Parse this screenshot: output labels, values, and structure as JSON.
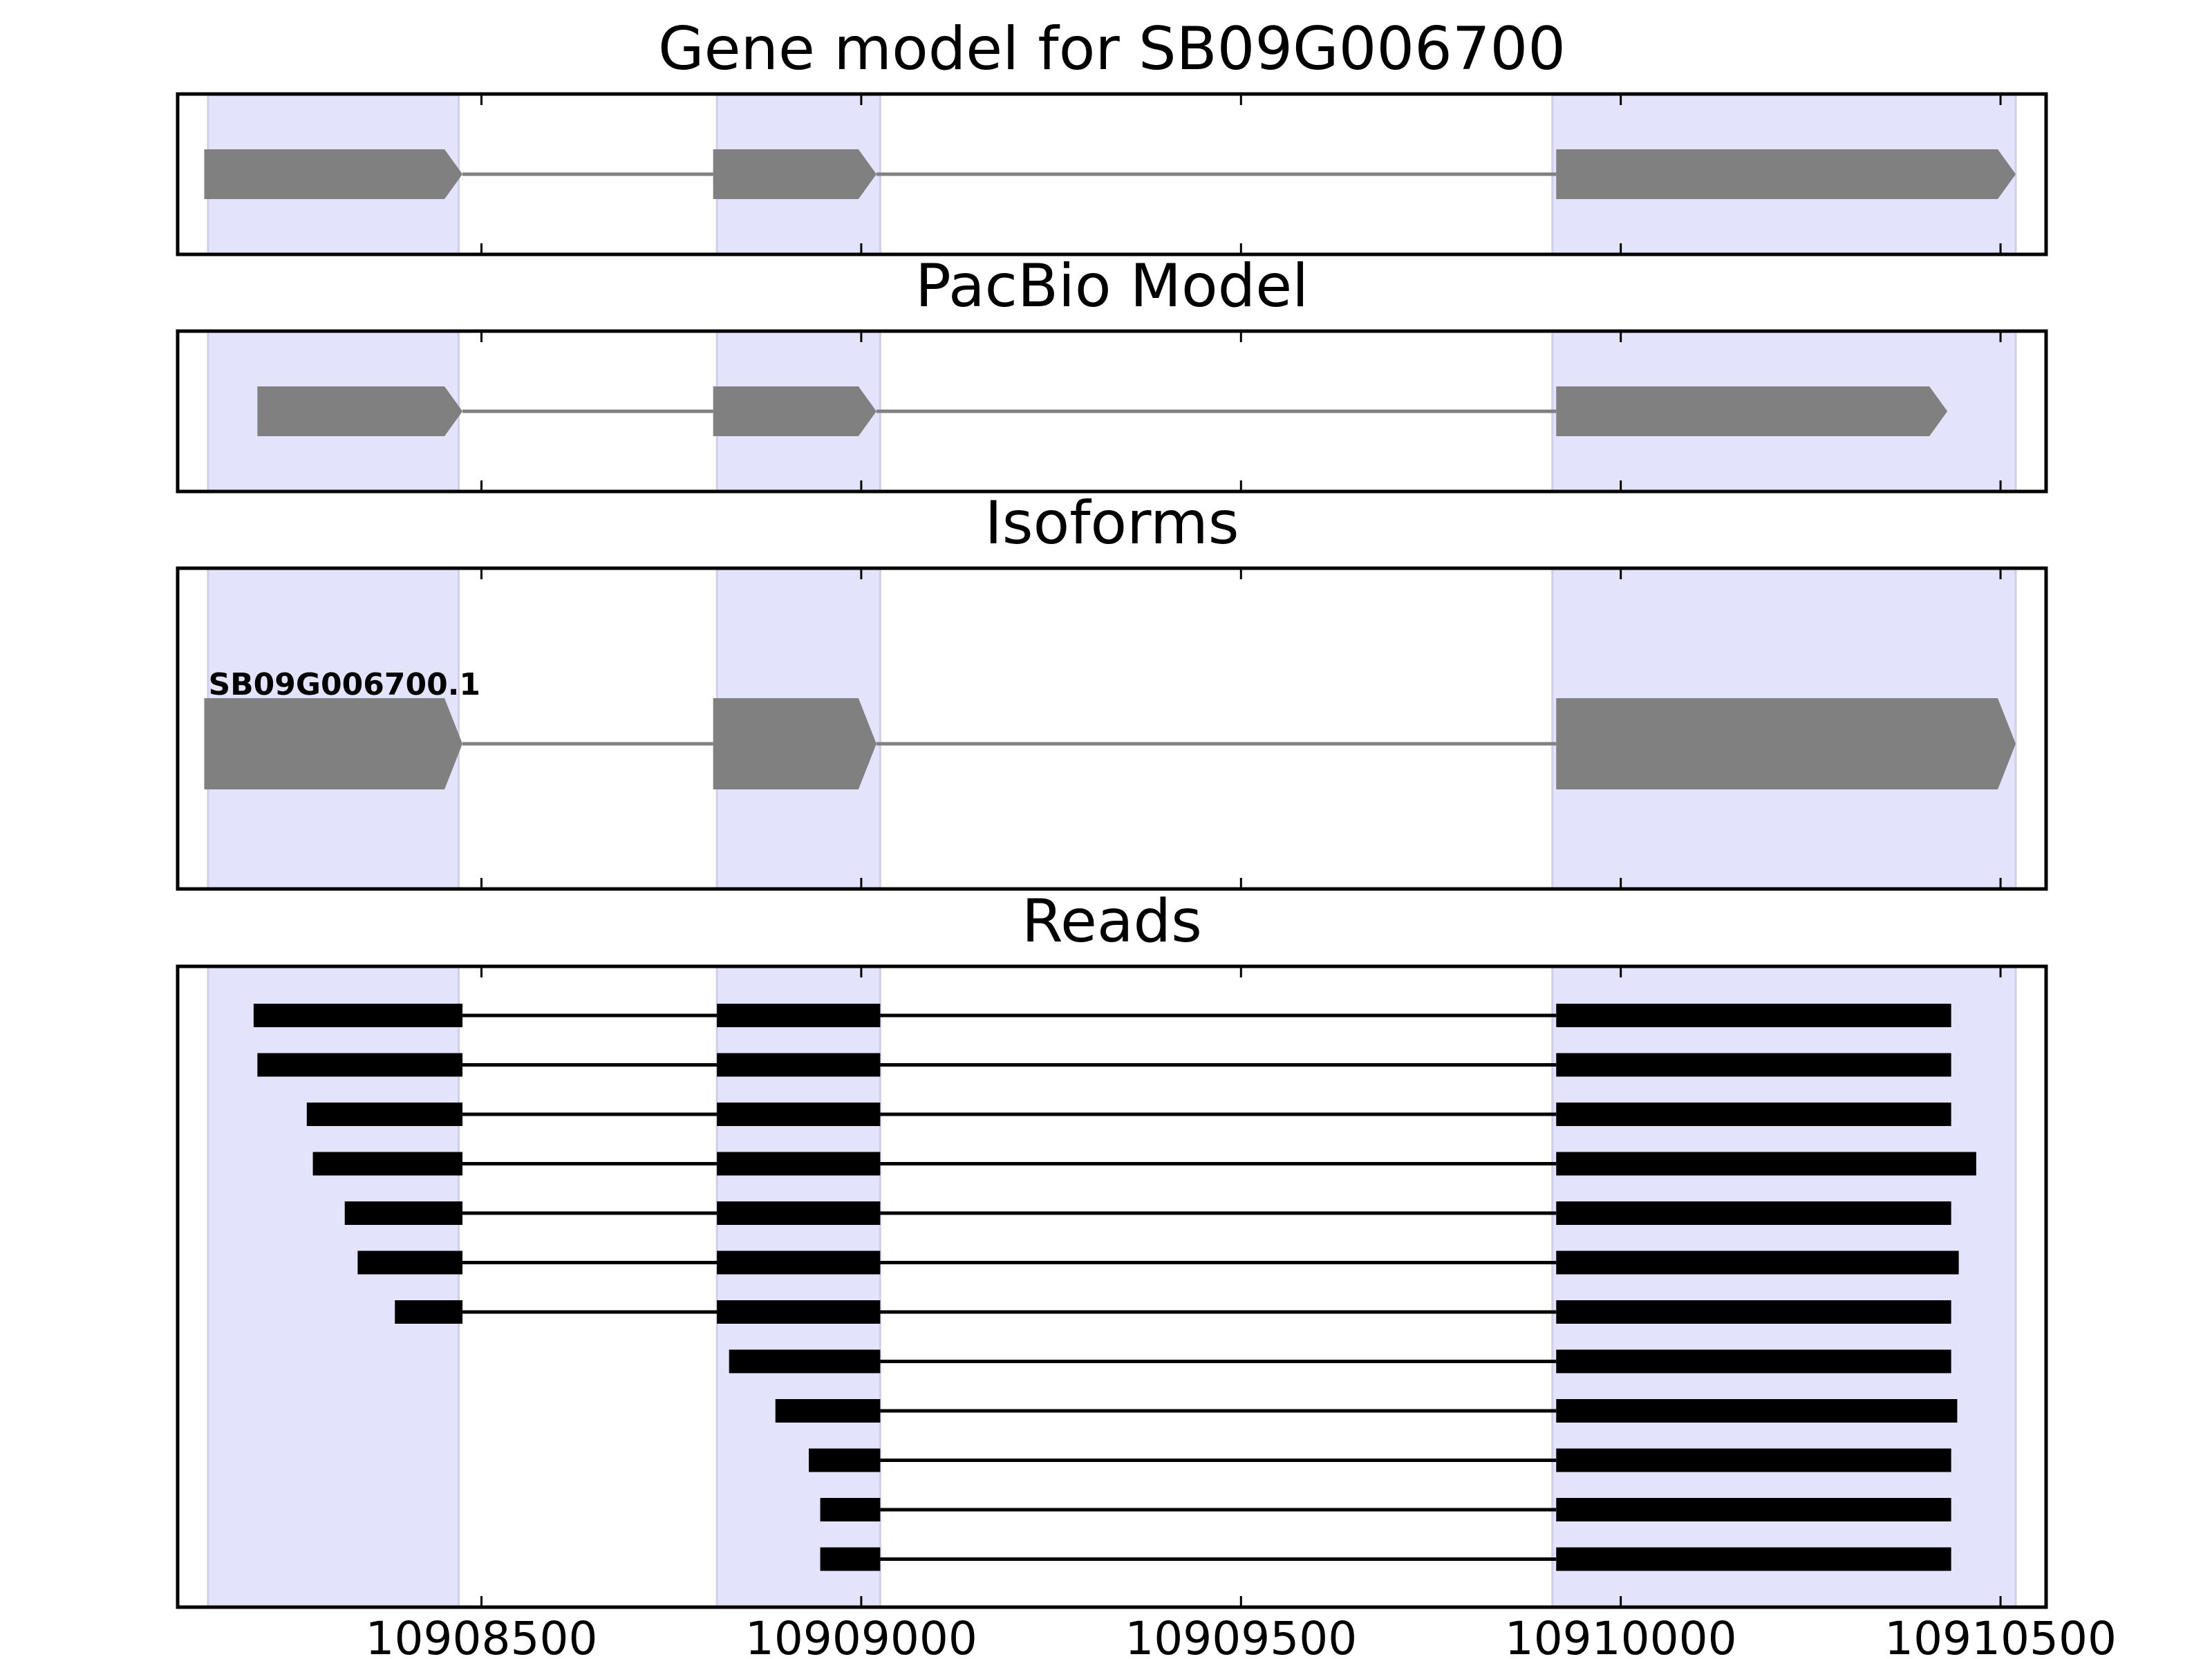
{
  "chart_data": {
    "type": "gene_model_tracks",
    "x_axis": {
      "range": [
        10908100,
        10910560
      ],
      "ticks": [
        10908500,
        10909000,
        10909500,
        10910000,
        10910500
      ],
      "tick_labels": [
        "10908500",
        "10909000",
        "10909500",
        "10910000",
        "10910500"
      ]
    },
    "highlight_regions": [
      [
        10908140,
        10908470
      ],
      [
        10908810,
        10909025
      ],
      [
        10909910,
        10910520
      ]
    ],
    "highlight_color": "#e3e3fc",
    "panels": [
      {
        "title": "Gene model for SB09G006700",
        "features": [
          {
            "exons": [
              [
                10908135,
                10908475
              ],
              [
                10908805,
                10909020
              ],
              [
                10909915,
                10910520
              ]
            ],
            "strand": "+",
            "color": "#808080",
            "label": ""
          }
        ]
      },
      {
        "title": "PacBio Model",
        "features": [
          {
            "exons": [
              [
                10908205,
                10908475
              ],
              [
                10908805,
                10909020
              ],
              [
                10909915,
                10910430
              ]
            ],
            "strand": "+",
            "color": "#808080",
            "label": ""
          }
        ]
      },
      {
        "title": "Isoforms",
        "features": [
          {
            "exons": [
              [
                10908135,
                10908475
              ],
              [
                10908805,
                10909020
              ],
              [
                10909915,
                10910520
              ]
            ],
            "strand": "+",
            "color": "#808080",
            "label": "SB09G006700.1"
          }
        ]
      },
      {
        "title": "Reads",
        "read_color": "#000000",
        "reads": [
          [
            [
              10908200,
              10908475
            ],
            [
              10908810,
              10909025
            ],
            [
              10909915,
              10910435
            ]
          ],
          [
            [
              10908205,
              10908475
            ],
            [
              10908810,
              10909025
            ],
            [
              10909915,
              10910435
            ]
          ],
          [
            [
              10908270,
              10908475
            ],
            [
              10908810,
              10909025
            ],
            [
              10909915,
              10910435
            ]
          ],
          [
            [
              10908278,
              10908475
            ],
            [
              10908810,
              10909025
            ],
            [
              10909915,
              10910468
            ]
          ],
          [
            [
              10908320,
              10908475
            ],
            [
              10908810,
              10909025
            ],
            [
              10909915,
              10910435
            ]
          ],
          [
            [
              10908337,
              10908475
            ],
            [
              10908810,
              10909025
            ],
            [
              10909915,
              10910445
            ]
          ],
          [
            [
              10908386,
              10908475
            ],
            [
              10908810,
              10909025
            ],
            [
              10909915,
              10910435
            ]
          ],
          [
            [
              10908826,
              10909025
            ],
            [
              10909915,
              10910435
            ]
          ],
          [
            [
              10908887,
              10909025
            ],
            [
              10909915,
              10910443
            ]
          ],
          [
            [
              10908931,
              10909025
            ],
            [
              10909915,
              10910435
            ]
          ],
          [
            [
              10908946,
              10909025
            ],
            [
              10909915,
              10910435
            ]
          ],
          [
            [
              10908946,
              10909025
            ],
            [
              10909915,
              10910435
            ]
          ]
        ]
      }
    ]
  }
}
